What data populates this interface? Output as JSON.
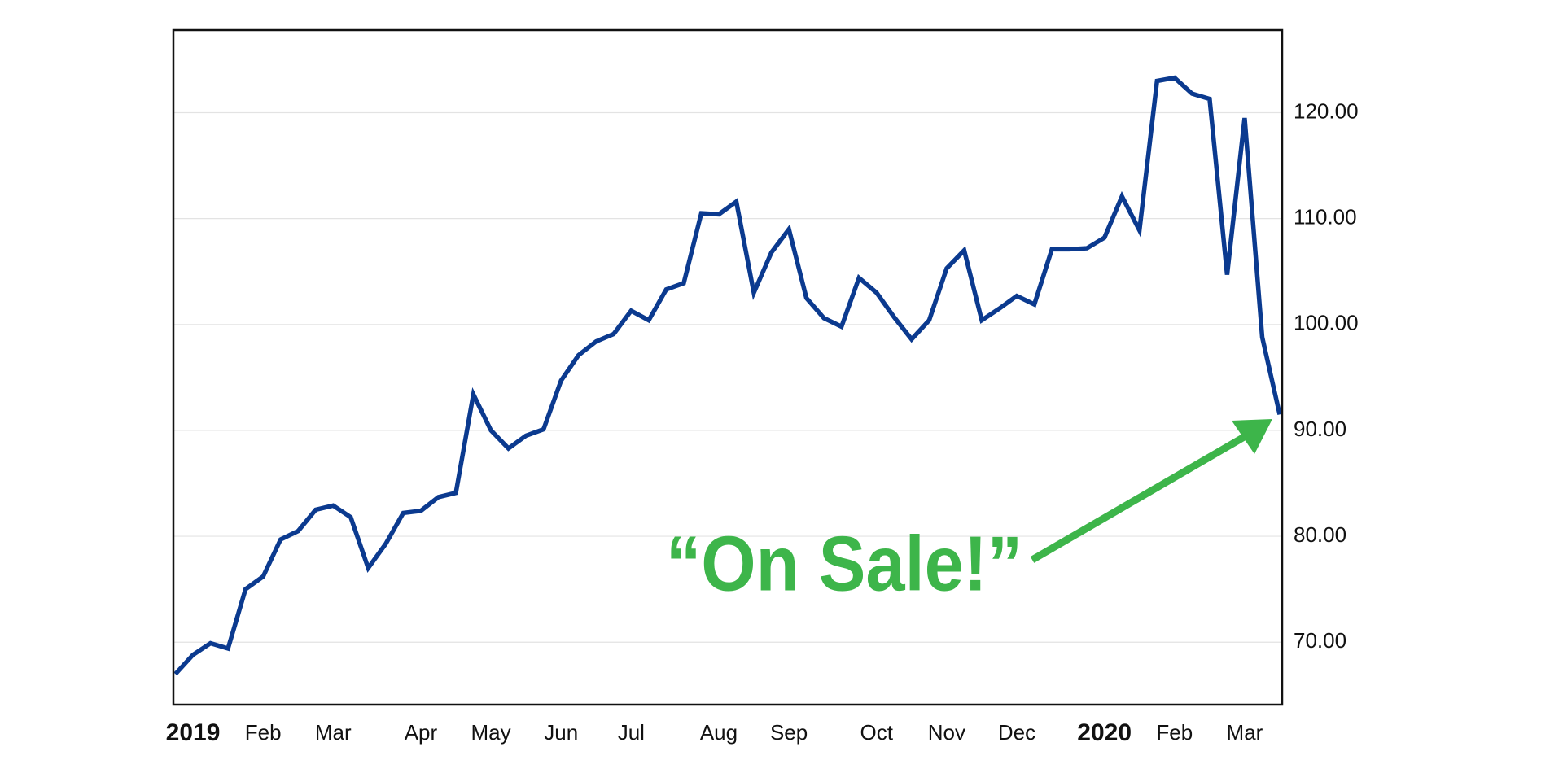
{
  "chart_data": {
    "type": "line",
    "annotation": "“On Sale!”",
    "categories": [
      null,
      "2019",
      null,
      null,
      null,
      "Feb",
      null,
      null,
      null,
      "Mar",
      null,
      null,
      null,
      null,
      "Apr",
      null,
      null,
      null,
      "May",
      null,
      null,
      null,
      "Jun",
      null,
      null,
      null,
      "Jul",
      null,
      null,
      null,
      null,
      "Aug",
      null,
      null,
      null,
      "Sep",
      null,
      null,
      null,
      null,
      "Oct",
      null,
      null,
      null,
      "Nov",
      null,
      null,
      null,
      "Dec",
      null,
      null,
      null,
      null,
      "2020",
      null,
      null,
      null,
      "Feb",
      null,
      null,
      null,
      "Mar",
      null,
      null
    ],
    "values": [
      67.0,
      68.8,
      69.9,
      69.4,
      75.0,
      76.2,
      79.7,
      80.5,
      82.5,
      82.9,
      81.8,
      77.0,
      79.3,
      82.2,
      82.4,
      83.7,
      84.1,
      93.4,
      90.0,
      88.3,
      89.5,
      90.1,
      94.7,
      97.1,
      98.4,
      99.1,
      101.3,
      100.4,
      103.3,
      103.9,
      110.5,
      110.4,
      111.6,
      103.0,
      106.8,
      109.0,
      102.5,
      100.6,
      99.8,
      104.4,
      103.0,
      100.7,
      98.6,
      100.4,
      105.3,
      107.0,
      100.4,
      101.5,
      102.7,
      101.9,
      107.1,
      107.1,
      107.2,
      108.2,
      112.1,
      108.9,
      123.0,
      123.3,
      121.8,
      121.3,
      104.7,
      119.5,
      98.8,
      91.5
    ],
    "color": "#0b3a8f",
    "annotation_color": "#3db54a",
    "ylim": [
      64.1,
      127.8
    ],
    "yticks": [
      {
        "value": 70,
        "label": "70.00"
      },
      {
        "value": 80,
        "label": "80.00"
      },
      {
        "value": 90,
        "label": "90.00"
      },
      {
        "value": 100,
        "label": "100.00"
      },
      {
        "value": 110,
        "label": "110.00"
      },
      {
        "value": 120,
        "label": "120.00"
      }
    ],
    "yaxis_side": "right",
    "grid": true
  }
}
